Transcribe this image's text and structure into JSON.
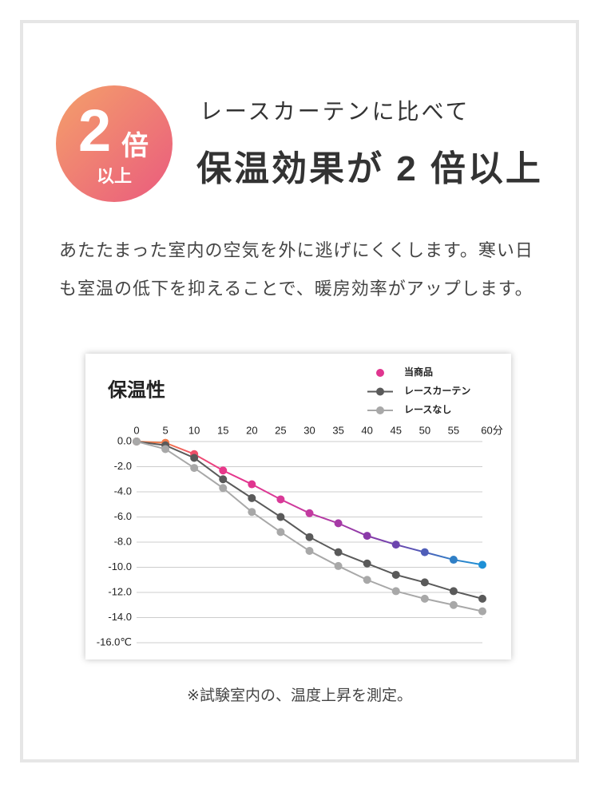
{
  "badge": {
    "number": "2",
    "unit": "倍",
    "sub": "以上"
  },
  "subheading": "レースカーテンに比べて",
  "heading": "保温効果が 2 倍以上",
  "body": [
    "あたたまった室内の空気を外に逃げにくくします。寒い日",
    "も室温の低下を抑えることで、暖房効率がアップします。"
  ],
  "note": "※試験室内の、温度上昇を測定。",
  "chart_data": {
    "type": "line",
    "title": "保温性",
    "x": [
      0,
      5,
      10,
      15,
      20,
      25,
      30,
      35,
      40,
      45,
      50,
      55,
      60
    ],
    "xlim": [
      0,
      60
    ],
    "xticks": [
      0,
      5,
      10,
      15,
      20,
      25,
      30,
      35,
      40,
      45,
      50,
      55,
      {
        "value": 60,
        "label": "60分"
      }
    ],
    "ylim": [
      -16,
      0
    ],
    "yticks": [
      {
        "value": 0,
        "label": "0.0"
      },
      {
        "value": -2,
        "label": "-2.0"
      },
      {
        "value": -4,
        "label": "-4.0"
      },
      {
        "value": -6,
        "label": "-6.0"
      },
      {
        "value": -8,
        "label": "-8.0"
      },
      {
        "value": -10,
        "label": "-10.0"
      },
      {
        "value": -12,
        "label": "-12.0"
      },
      {
        "value": -14,
        "label": "-14.0"
      },
      {
        "value": -16,
        "label": "-16.0℃"
      }
    ],
    "grid": true,
    "legend": "top-right",
    "series": [
      {
        "name": "当商品",
        "color": "#e0358f",
        "point_colors": [
          "#f07a4a",
          "#f07a4a",
          "#f0506a",
          "#e8388a",
          "#e0358f",
          "#d93a98",
          "#c23aa0",
          "#a63aa6",
          "#8a3aa8",
          "#6d45ae",
          "#4f5eb8",
          "#2f7fc6",
          "#1e90d6"
        ],
        "values": [
          0,
          -0.1,
          -1.0,
          -2.3,
          -3.4,
          -4.6,
          -5.7,
          -6.5,
          -7.5,
          -8.2,
          -8.8,
          -9.4,
          -9.8
        ]
      },
      {
        "name": "レースカーテン",
        "color": "#5a5a5a",
        "values": [
          0,
          -0.3,
          -1.3,
          -3.0,
          -4.5,
          -6.0,
          -7.6,
          -8.8,
          -9.7,
          -10.6,
          -11.2,
          -11.9,
          -12.5
        ]
      },
      {
        "name": "レースなし",
        "color": "#a8a8a8",
        "values": [
          0,
          -0.6,
          -2.1,
          -3.7,
          -5.6,
          -7.2,
          -8.7,
          -9.9,
          -11.0,
          -11.9,
          -12.5,
          -13.0,
          -13.5
        ]
      }
    ]
  }
}
